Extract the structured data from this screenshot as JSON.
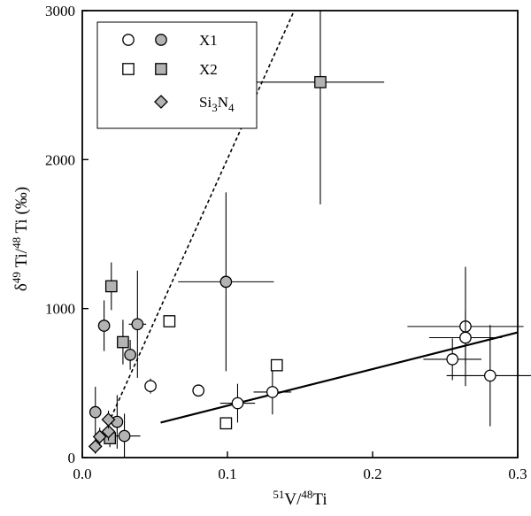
{
  "chart_data": {
    "type": "scatter",
    "xlabel_parts": {
      "sup": "51",
      "main": "V/",
      "sup2": "48",
      "tail": "Ti"
    },
    "ylabel_parts": {
      "lead": "δ",
      "sup": "49",
      "mid": " Ti/",
      "sup2": "48",
      "tail": " Ti (‰)"
    },
    "xlim": [
      0.0,
      0.3
    ],
    "ylim": [
      0,
      3000
    ],
    "x_ticks": [
      0.0,
      0.1,
      0.2,
      0.3
    ],
    "x_tick_labels": [
      "0.0",
      "0.1",
      "0.2",
      "0.3"
    ],
    "y_ticks": [
      0,
      1000,
      2000,
      3000
    ],
    "y_tick_labels": [
      "0",
      "1000",
      "2000",
      "3000"
    ],
    "grid": false,
    "legend": {
      "placement": "top-left",
      "entries": [
        {
          "label": "X1",
          "markers": [
            "circle-open",
            "circle-filled"
          ]
        },
        {
          "label": "X2",
          "markers": [
            "square-open",
            "square-filled"
          ]
        },
        {
          "label_parts": {
            "main": "Si",
            "sub": "3",
            "mid": "N",
            "sub2": "4"
          },
          "markers": [
            "diamond-filled"
          ]
        }
      ]
    },
    "series": [
      {
        "name": "X1",
        "marker": "circle-open",
        "points": [
          {
            "x": 0.047,
            "y": 480,
            "xerr": 0.003,
            "yerr": 50
          },
          {
            "x": 0.08,
            "y": 450
          },
          {
            "x": 0.107,
            "y": 365,
            "xerr": 0.012,
            "yerr": 130
          },
          {
            "x": 0.131,
            "y": 440,
            "xerr": 0.013,
            "yerr": 150
          },
          {
            "x": 0.255,
            "y": 660,
            "xerr": 0.02,
            "yerr": 140
          },
          {
            "x": 0.264,
            "y": 880,
            "xerr": 0.04,
            "yerr": 400
          },
          {
            "x": 0.264,
            "y": 805,
            "xerr": 0.025,
            "yerr": 180
          },
          {
            "x": 0.281,
            "y": 550,
            "xerr": 0.03,
            "yerr": 340
          }
        ]
      },
      {
        "name": "X1",
        "marker": "circle-filled",
        "points": [
          {
            "x": 0.009,
            "y": 305,
            "xerr": 0.004,
            "yerr": 170
          },
          {
            "x": 0.015,
            "y": 885,
            "xerr": 0.003,
            "yerr": 170
          },
          {
            "x": 0.024,
            "y": 240,
            "xerr": 0.004,
            "yerr": 180
          },
          {
            "x": 0.029,
            "y": 145,
            "xerr": 0.011,
            "yerr": 150
          },
          {
            "x": 0.033,
            "y": 690,
            "xerr": 0.003,
            "yerr": 100
          },
          {
            "x": 0.038,
            "y": 895,
            "xerr": 0.006,
            "yerr": 360
          },
          {
            "x": 0.099,
            "y": 1180,
            "xerr": 0.033,
            "yerr": 600
          }
        ]
      },
      {
        "name": "X2",
        "marker": "square-open",
        "points": [
          {
            "x": 0.06,
            "y": 915
          },
          {
            "x": 0.099,
            "y": 230
          },
          {
            "x": 0.134,
            "y": 620
          }
        ]
      },
      {
        "name": "X2",
        "marker": "square-filled",
        "points": [
          {
            "x": 0.019,
            "y": 130,
            "xerr": 0.003,
            "yerr": 60
          },
          {
            "x": 0.02,
            "y": 1150,
            "xerr": 0.003,
            "yerr": 160
          },
          {
            "x": 0.028,
            "y": 775,
            "xerr": 0.003,
            "yerr": 150
          },
          {
            "x": 0.164,
            "y": 2520,
            "xerr": 0.044,
            "yerr": 820
          }
        ]
      },
      {
        "name": "Si3N4",
        "marker": "diamond-filled",
        "points": [
          {
            "x": 0.009,
            "y": 75,
            "xerr": 0.003,
            "yerr": 50
          },
          {
            "x": 0.012,
            "y": 140,
            "xerr": 0.003,
            "yerr": 60
          },
          {
            "x": 0.018,
            "y": 175,
            "xerr": 0.003,
            "yerr": 60
          },
          {
            "x": 0.018,
            "y": 255,
            "xerr": 0.004,
            "yerr": 60
          }
        ]
      }
    ],
    "lines": [
      {
        "style": "dashed",
        "from": [
          0.018,
          230
        ],
        "to": [
          0.146,
          3000
        ]
      },
      {
        "style": "solid",
        "from": [
          0.054,
          235
        ],
        "to": [
          0.3,
          840
        ]
      }
    ]
  }
}
